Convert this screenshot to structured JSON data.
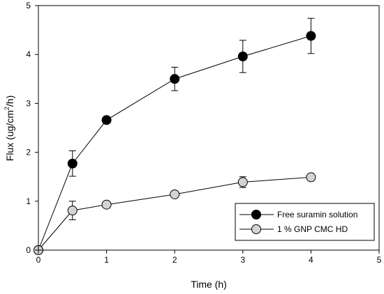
{
  "chart_data": {
    "type": "line",
    "xlabel": "Time (h)",
    "ylabel_parts": [
      "Flux (ug/cm",
      "2",
      "/h)"
    ],
    "xlim": [
      0,
      5
    ],
    "ylim": [
      0,
      5
    ],
    "xticks": [
      "0",
      "1",
      "2",
      "3",
      "4",
      "5"
    ],
    "yticks": [
      "0",
      "1",
      "2",
      "3",
      "4",
      "5"
    ],
    "grid": false,
    "legend_position": "bottom-right",
    "series": [
      {
        "name": "Free suramin solution",
        "color": "#000000",
        "x": [
          0,
          0.5,
          1,
          2,
          3,
          4
        ],
        "y": [
          0,
          1.77,
          2.66,
          3.5,
          3.96,
          4.38
        ],
        "err": [
          0,
          0.26,
          0,
          0.24,
          0.33,
          0.36
        ]
      },
      {
        "name": "1 % GNP CMC HD",
        "color": "#d3d3d3",
        "x": [
          0,
          0.5,
          1,
          2,
          3,
          4
        ],
        "y": [
          0,
          0.81,
          0.93,
          1.14,
          1.39,
          1.49
        ],
        "err": [
          0,
          0.19,
          0,
          0,
          0.11,
          0
        ]
      }
    ]
  }
}
